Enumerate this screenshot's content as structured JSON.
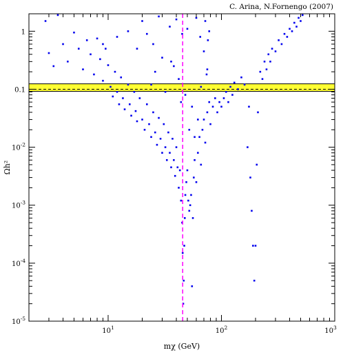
{
  "credit": "C. Arina, N.Fornengo (2007)",
  "chart_data": {
    "type": "scatter",
    "title": "",
    "xlabel": "mχ (GeV)",
    "ylabel": "Ωh²",
    "xscale": "log",
    "yscale": "log",
    "xlim": [
      2,
      1000
    ],
    "ylim": [
      1e-05,
      2
    ],
    "x_ticks": [
      {
        "value": 10,
        "base": "10",
        "exp": "1"
      },
      {
        "value": 100,
        "base": "10",
        "exp": "2"
      },
      {
        "value": 1000,
        "base": "10",
        "exp": "3"
      }
    ],
    "y_ticks": [
      {
        "value": 1e-05,
        "base": "10",
        "exp": "-5"
      },
      {
        "value": 0.0001,
        "base": "10",
        "exp": "-4"
      },
      {
        "value": 0.001,
        "base": "10",
        "exp": "-3"
      },
      {
        "value": 0.01,
        "base": "10",
        "exp": "-2"
      },
      {
        "value": 0.1,
        "text": "0.1"
      },
      {
        "value": 1,
        "text": "1"
      }
    ],
    "wmap_band": {
      "ymin": 0.092,
      "ymax": 0.124,
      "color": "#ffff33"
    },
    "reference_line_y": 0.1,
    "vertical_line_x": 45.5,
    "series_color": "#0000ee",
    "vline_color": "#ff00ff",
    "points": [
      [
        2.8,
        1.5
      ],
      [
        3.0,
        0.42
      ],
      [
        3.3,
        0.25
      ],
      [
        3.6,
        1.9
      ],
      [
        4.0,
        0.6
      ],
      [
        4.4,
        0.3
      ],
      [
        5.0,
        0.95
      ],
      [
        5.5,
        0.5
      ],
      [
        6.0,
        0.22
      ],
      [
        6.5,
        0.7
      ],
      [
        7.0,
        0.4
      ],
      [
        7.5,
        0.18
      ],
      [
        8.0,
        0.75
      ],
      [
        8.5,
        0.33
      ],
      [
        9.0,
        0.14
      ],
      [
        9.5,
        0.5
      ],
      [
        10,
        0.26
      ],
      [
        10.5,
        0.11
      ],
      [
        11,
        0.075
      ],
      [
        11.5,
        0.2
      ],
      [
        12,
        0.09
      ],
      [
        12.5,
        0.055
      ],
      [
        13,
        0.16
      ],
      [
        13.5,
        0.07
      ],
      [
        14,
        0.045
      ],
      [
        15,
        0.12
      ],
      [
        15.5,
        0.055
      ],
      [
        16,
        0.035
      ],
      [
        17,
        0.09
      ],
      [
        17.5,
        0.042
      ],
      [
        18,
        0.028
      ],
      [
        19,
        0.07
      ],
      [
        20,
        0.03
      ],
      [
        21,
        0.02
      ],
      [
        22,
        0.055
      ],
      [
        23,
        0.025
      ],
      [
        24,
        0.015
      ],
      [
        25,
        0.04
      ],
      [
        26,
        0.018
      ],
      [
        27,
        0.011
      ],
      [
        28,
        0.032
      ],
      [
        29,
        0.014
      ],
      [
        30,
        0.008
      ],
      [
        31,
        0.025
      ],
      [
        32,
        0.01
      ],
      [
        33,
        0.006
      ],
      [
        34,
        0.018
      ],
      [
        35,
        0.008
      ],
      [
        36,
        0.0045
      ],
      [
        37,
        0.014
      ],
      [
        38,
        0.006
      ],
      [
        39,
        0.0032
      ],
      [
        40,
        0.01
      ],
      [
        41,
        0.0045
      ],
      [
        42,
        0.002
      ],
      [
        43,
        0.004
      ],
      [
        44,
        0.0012
      ],
      [
        45,
        0.0005
      ],
      [
        45.5,
        0.00015
      ],
      [
        46,
        2e-05
      ],
      [
        46.5,
        5e-05
      ],
      [
        47,
        0.0002
      ],
      [
        47.5,
        0.0006
      ],
      [
        48,
        0.0015
      ],
      [
        49,
        0.0025
      ],
      [
        50,
        0.004
      ],
      [
        51,
        0.0012
      ],
      [
        52,
        0.0008
      ],
      [
        53,
        0.001
      ],
      [
        54,
        0.0015
      ],
      [
        55,
        4e-05
      ],
      [
        56,
        0.0006
      ],
      [
        57,
        0.003
      ],
      [
        58,
        0.006
      ],
      [
        60,
        0.0025
      ],
      [
        62,
        0.008
      ],
      [
        64,
        0.015
      ],
      [
        66,
        0.005
      ],
      [
        68,
        0.02
      ],
      [
        70,
        0.03
      ],
      [
        72,
        0.012
      ],
      [
        75,
        0.04
      ],
      [
        78,
        0.06
      ],
      [
        80,
        0.025
      ],
      [
        84,
        0.05
      ],
      [
        88,
        0.07
      ],
      [
        92,
        0.04
      ],
      [
        96,
        0.06
      ],
      [
        100,
        0.05
      ],
      [
        105,
        0.07
      ],
      [
        110,
        0.09
      ],
      [
        115,
        0.06
      ],
      [
        120,
        0.11
      ],
      [
        125,
        0.08
      ],
      [
        130,
        0.13
      ],
      [
        140,
        0.1
      ],
      [
        150,
        0.16
      ],
      [
        160,
        0.12
      ],
      [
        170,
        0.01
      ],
      [
        175,
        0.05
      ],
      [
        180,
        0.003
      ],
      [
        185,
        0.0008
      ],
      [
        190,
        0.0002
      ],
      [
        195,
        5e-05
      ],
      [
        200,
        0.0002
      ],
      [
        205,
        0.005
      ],
      [
        210,
        0.04
      ],
      [
        220,
        0.2
      ],
      [
        230,
        0.15
      ],
      [
        240,
        0.3
      ],
      [
        250,
        0.22
      ],
      [
        260,
        0.4
      ],
      [
        270,
        0.3
      ],
      [
        280,
        0.5
      ],
      [
        300,
        0.45
      ],
      [
        320,
        0.7
      ],
      [
        340,
        0.6
      ],
      [
        360,
        0.9
      ],
      [
        380,
        0.8
      ],
      [
        400,
        1.1
      ],
      [
        420,
        1.0
      ],
      [
        440,
        1.4
      ],
      [
        460,
        1.2
      ],
      [
        480,
        1.7
      ],
      [
        500,
        1.5
      ],
      [
        520,
        1.9
      ],
      [
        9,
        0.6
      ],
      [
        12,
        0.8
      ],
      [
        15,
        1.0
      ],
      [
        18,
        0.5
      ],
      [
        20,
        1.5
      ],
      [
        22,
        0.9
      ],
      [
        25,
        0.6
      ],
      [
        28,
        1.8
      ],
      [
        30,
        0.35
      ],
      [
        35,
        1.2
      ],
      [
        38,
        0.25
      ],
      [
        40,
        1.6
      ],
      [
        42,
        0.15
      ],
      [
        45,
        0.9
      ],
      [
        48,
        0.08
      ],
      [
        50,
        1.1
      ],
      [
        55,
        0.05
      ],
      [
        60,
        1.7
      ],
      [
        62,
        0.03
      ],
      [
        65,
        0.8
      ],
      [
        70,
        0.45
      ],
      [
        72,
        1.5
      ],
      [
        75,
        0.22
      ],
      [
        78,
        1.0
      ],
      [
        24,
        0.12
      ],
      [
        26,
        0.2
      ],
      [
        32,
        0.09
      ],
      [
        36,
        0.3
      ],
      [
        44,
        0.06
      ],
      [
        52,
        0.02
      ],
      [
        58,
        0.015
      ],
      [
        66,
        0.11
      ],
      [
        74,
        0.18
      ],
      [
        76,
        0.7
      ]
    ]
  }
}
